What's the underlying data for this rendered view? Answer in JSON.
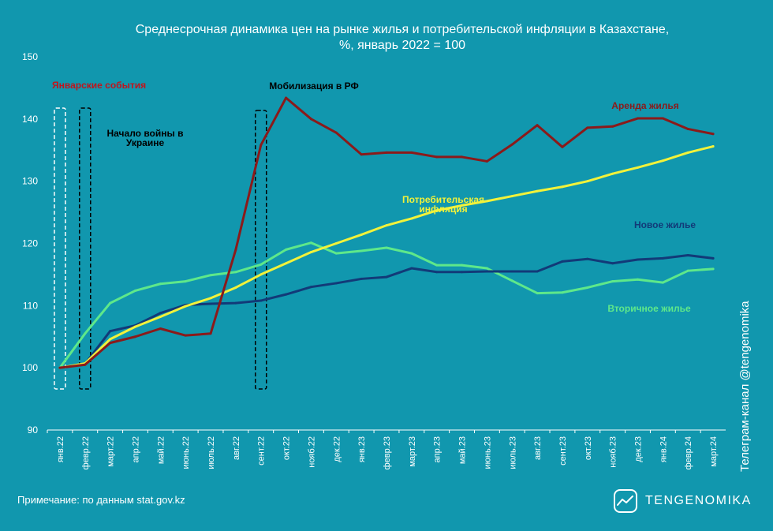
{
  "chart_data": {
    "type": "line",
    "title": "Среднесрочная динамика цен на рынке жилья и потребительской инфляции в Казахстане,",
    "subtitle": "%, январь 2022 = 100",
    "ylim": [
      90,
      150
    ],
    "yticks": [
      90,
      100,
      110,
      120,
      130,
      140,
      150
    ],
    "categories": [
      "янв.22",
      "февр.22",
      "март.22",
      "апр.22",
      "май.22",
      "июнь.22",
      "июль.22",
      "авг.22",
      "сент.22",
      "окт.22",
      "нояб.22",
      "дек.22",
      "янв.23",
      "февр.23",
      "март.23",
      "апр.23",
      "май.23",
      "июнь.23",
      "июль.23",
      "авг.23",
      "сент.23",
      "окт.23",
      "нояб.23",
      "дек.23",
      "янв.24",
      "февр.24",
      "март.24"
    ],
    "series": [
      {
        "name": "Аренда жилья",
        "color": "#8B1A1A",
        "label_color": "#8B1A1A",
        "values": [
          100,
          100.5,
          104,
          105,
          106.3,
          105.2,
          105.5,
          119,
          135.8,
          143.4,
          140,
          137.8,
          134.3,
          134.6,
          134.6,
          133.9,
          133.9,
          133.2,
          135.9,
          139,
          135.5,
          138.6,
          138.8,
          140.1,
          140.1,
          138.4,
          137.6
        ]
      },
      {
        "name": "Потребительская инфляция",
        "color": "#F2F23A",
        "label_color": "#F2F23A",
        "values": [
          100,
          100.7,
          104.6,
          106.6,
          108.2,
          109.9,
          111.2,
          112.9,
          115,
          116.8,
          118.6,
          120,
          121.4,
          122.9,
          124,
          125.3,
          126.1,
          126.8,
          127.6,
          128.4,
          129.1,
          130,
          131.2,
          132.2,
          133.3,
          134.6,
          135.6
        ]
      },
      {
        "name": "Новое жилье",
        "color": "#123A78",
        "label_color": "#123A78",
        "values": [
          100,
          100.6,
          105.9,
          106.8,
          108.8,
          110.1,
          110.3,
          110.4,
          110.8,
          111.8,
          113,
          113.6,
          114.3,
          114.6,
          116,
          115.4,
          115.4,
          115.5,
          115.5,
          115.5,
          117.1,
          117.5,
          116.8,
          117.4,
          117.6,
          118.1,
          117.6
        ]
      },
      {
        "name": "Вторичное жилье",
        "color": "#5EE88A",
        "label_color": "#5EE88A",
        "values": [
          100,
          105.5,
          110.4,
          112.4,
          113.5,
          113.9,
          114.9,
          115.4,
          116.6,
          119,
          120.1,
          118.4,
          118.8,
          119.3,
          118.4,
          116.5,
          116.5,
          116,
          114,
          112,
          112.1,
          112.9,
          113.9,
          114.2,
          113.7,
          115.6,
          115.9
        ]
      }
    ],
    "events": [
      {
        "label": "Январские события",
        "color": "#C0141C",
        "box_color": "#FFFFFF",
        "start": 0,
        "end": 0,
        "label_lines": [
          "Январские события"
        ]
      },
      {
        "label": "Начало войны в Украине",
        "color": "#000000",
        "box_color": "#000000",
        "start": 1,
        "end": 1,
        "label_lines": [
          "Начало войны в",
          "Украине"
        ]
      },
      {
        "label": "Мобилизация в РФ",
        "color": "#000000",
        "box_color": "#000000",
        "start": 8,
        "end": 8,
        "label_lines": [
          "Мобилизация в РФ"
        ]
      }
    ],
    "series_labels": [
      {
        "text_lines": [
          "Аренда жилья"
        ],
        "series": 0
      },
      {
        "text_lines": [
          "Потребительская",
          "инфляция"
        ],
        "series": 1
      },
      {
        "text_lines": [
          "Новое жилье"
        ],
        "series": 2
      },
      {
        "text_lines": [
          "Вторичное жилье"
        ],
        "series": 3
      }
    ],
    "grid": false
  },
  "footer": {
    "note": "Примечание: по данным stat.gov.kz",
    "brand": "TENGENOMIKA",
    "side_credit": "Телеграм-канал @tengenomika"
  }
}
